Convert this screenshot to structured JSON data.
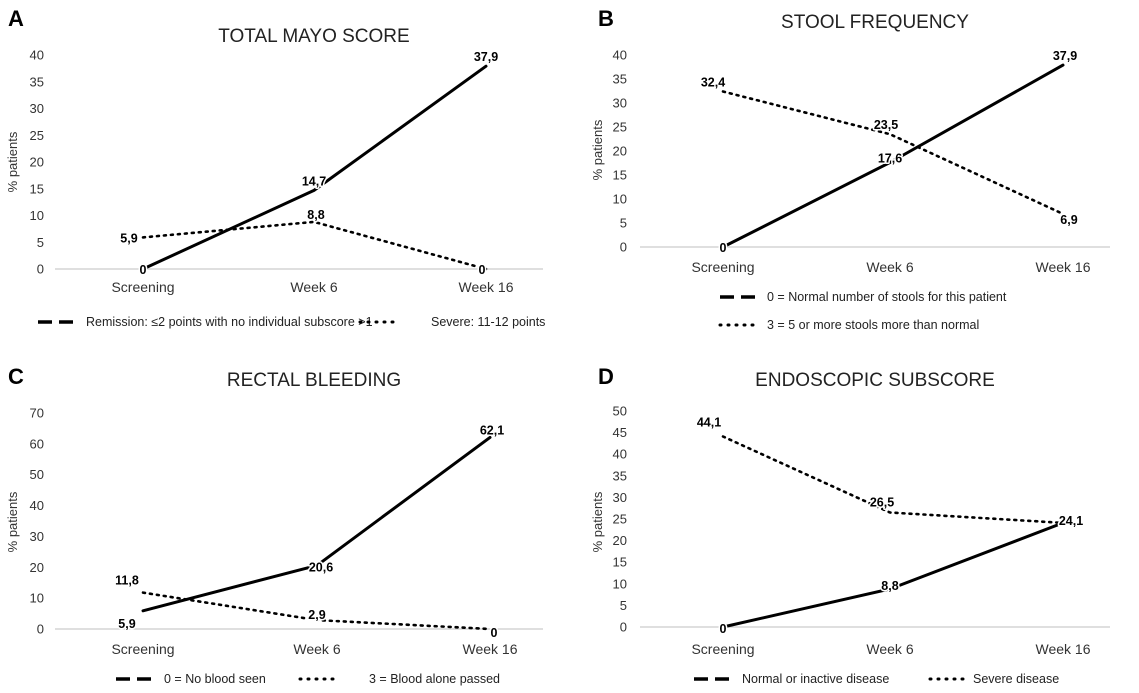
{
  "chart_data": [
    {
      "type": "line",
      "panel": "A",
      "title": "TOTAL MAYO SCORE",
      "ylabel": "% patients",
      "ylim": [
        0,
        40
      ],
      "yticks": [
        "0",
        "5",
        "10",
        "15",
        "20",
        "25",
        "30",
        "35",
        "40"
      ],
      "categories": [
        "Screening",
        "Week 6",
        "Week 16"
      ],
      "legend": "bottom-single-row",
      "grid": false,
      "series": [
        {
          "name": "Remission: ≤2 points with no individual subscore >1",
          "style": "solid",
          "values": [
            0,
            14.7,
            37.9
          ],
          "labels": [
            "0",
            "14,7",
            "37,9"
          ]
        },
        {
          "name": "Severe:  11-12 points",
          "style": "dotted",
          "values": [
            5.9,
            8.8,
            0
          ],
          "labels": [
            "5,9",
            "8,8",
            "0"
          ]
        }
      ]
    },
    {
      "type": "line",
      "panel": "B",
      "title": "STOOL FREQUENCY",
      "ylabel": "% patients",
      "ylim": [
        0,
        40
      ],
      "yticks": [
        "0",
        "5",
        "10",
        "15",
        "20",
        "25",
        "30",
        "35",
        "40"
      ],
      "categories": [
        "Screening",
        "Week 6",
        "Week 16"
      ],
      "legend": "bottom-two-rows",
      "grid": false,
      "series": [
        {
          "name": "0 = Normal number of stools for this patient",
          "style": "solid",
          "values": [
            0,
            17.6,
            37.9
          ],
          "labels": [
            "0",
            "17,6",
            "37,9"
          ]
        },
        {
          "name": "3 = 5 or more stools more than normal",
          "style": "dotted",
          "values": [
            32.4,
            23.5,
            6.9
          ],
          "labels": [
            "32,4",
            "23,5",
            "6,9"
          ]
        }
      ]
    },
    {
      "type": "line",
      "panel": "C",
      "title": "RECTAL BLEEDING",
      "ylabel": "% patients",
      "ylim": [
        0,
        70
      ],
      "yticks": [
        "0",
        "10",
        "20",
        "30",
        "40",
        "50",
        "60",
        "70"
      ],
      "categories": [
        "Screening",
        "Week 6",
        "Week 16"
      ],
      "legend": "bottom-single-row",
      "grid": false,
      "series": [
        {
          "name": "0 = No blood seen",
          "style": "solid",
          "values": [
            5.9,
            20.6,
            62.1
          ],
          "labels": [
            "5,9",
            "20,6",
            "62,1"
          ]
        },
        {
          "name": "3 = Blood alone passed",
          "style": "dotted",
          "values": [
            11.8,
            2.9,
            0
          ],
          "labels": [
            "11,8",
            "2,9",
            "0"
          ]
        }
      ]
    },
    {
      "type": "line",
      "panel": "D",
      "title": "ENDOSCOPIC SUBSCORE",
      "ylabel": "% patients",
      "ylim": [
        0,
        50
      ],
      "yticks": [
        "0",
        "5",
        "10",
        "15",
        "20",
        "25",
        "30",
        "35",
        "40",
        "45",
        "50"
      ],
      "categories": [
        "Screening",
        "Week 6",
        "Week 16"
      ],
      "legend": "bottom-single-row",
      "grid": false,
      "series": [
        {
          "name": "Normal or inactive disease",
          "style": "solid",
          "values": [
            0,
            8.8,
            24.1
          ],
          "labels": [
            "0",
            "8,8",
            "24,1"
          ]
        },
        {
          "name": "Severe disease",
          "style": "dotted",
          "values": [
            44.1,
            26.5,
            24.1
          ],
          "labels": [
            "44,1",
            "26,5",
            "24,1"
          ]
        }
      ]
    }
  ]
}
